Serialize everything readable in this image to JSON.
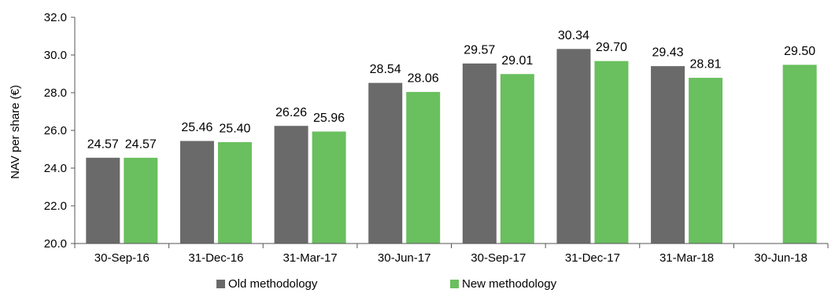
{
  "chart_data": {
    "type": "bar",
    "title": "",
    "xlabel": "",
    "ylabel": "NAV per share (€)",
    "ylim": [
      20.0,
      32.0
    ],
    "y_ticks": [
      "20.0",
      "22.0",
      "24.0",
      "26.0",
      "28.0",
      "30.0",
      "32.0"
    ],
    "grid": false,
    "legend_position": "bottom",
    "categories": [
      "30-Sep-16",
      "31-Dec-16",
      "31-Mar-17",
      "30-Jun-17",
      "30-Sep-17",
      "31-Dec-17",
      "31-Mar-18",
      "30-Jun-18"
    ],
    "series": [
      {
        "name": "Old methodology",
        "color": "#6a6a6a",
        "values": [
          24.57,
          25.46,
          26.26,
          28.54,
          29.57,
          30.34,
          29.43,
          null
        ],
        "labels": [
          "24.57",
          "25.46",
          "26.26",
          "28.54",
          "29.57",
          "30.34",
          "29.43",
          ""
        ]
      },
      {
        "name": "New methodology",
        "color": "#6abf5f",
        "values": [
          24.57,
          25.4,
          25.96,
          28.06,
          29.01,
          29.7,
          28.81,
          29.5
        ],
        "labels": [
          "24.57",
          "25.40",
          "25.96",
          "28.06",
          "29.01",
          "29.70",
          "28.81",
          "29.50"
        ]
      }
    ]
  }
}
